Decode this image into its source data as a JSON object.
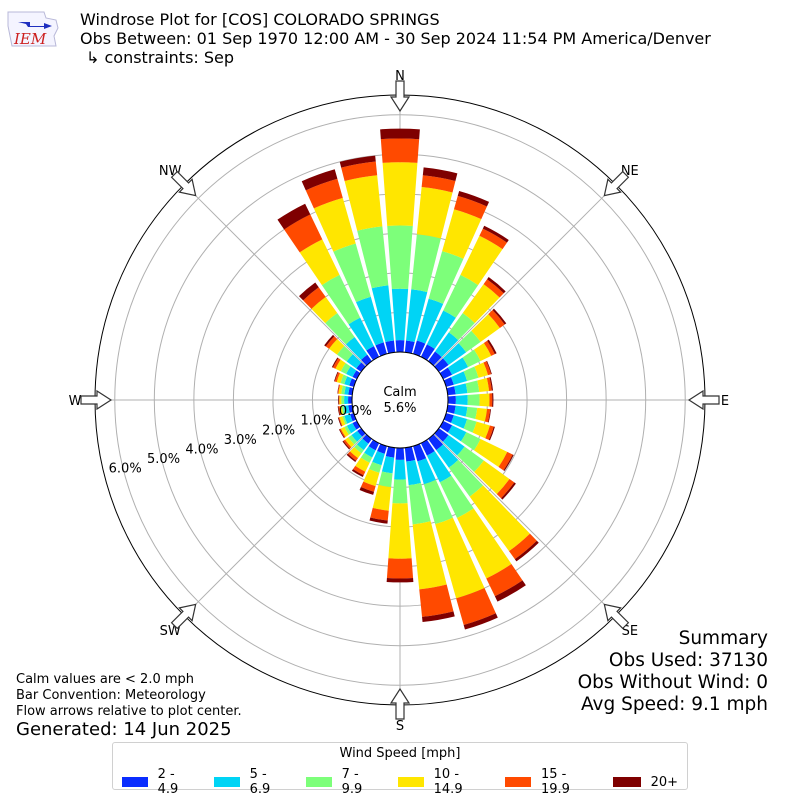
{
  "header": {
    "title": "Windrose Plot for [COS] COLORADO SPRINGS",
    "subtitle": "Obs Between: 01 Sep 1970 12:00 AM - 30 Sep 2024 11:54 PM America/Denver",
    "constraint": "↳ constraints: Sep",
    "logo_text": "IEM"
  },
  "notes": {
    "line1": "Calm values are < 2.0 mph",
    "line2": "Bar Convention: Meteorology",
    "line3": "Flow arrows relative to plot center.",
    "generated": "Generated: 14 Jun 2025"
  },
  "summary": {
    "title": "Summary",
    "obs_used": "Obs Used: 37130",
    "obs_without_wind": "Obs Without Wind: 0",
    "avg_speed": "Avg Speed: 9.1 mph"
  },
  "chart_data": {
    "type": "windrose",
    "title": "Windrose Plot for [COS] COLORADO SPRINGS",
    "calm": {
      "label": "Calm",
      "value_label": "5.6%",
      "value": 5.6
    },
    "radial_unit": "%",
    "radial_ticks": [
      0,
      1,
      2,
      3,
      4,
      5,
      6
    ],
    "radial_tick_labels": [
      "0.0%",
      "1.0%",
      "2.0%",
      "3.0%",
      "4.0%",
      "5.0%",
      "6.0%"
    ],
    "rmax": 6.5,
    "direction_labels": [
      {
        "label": "N",
        "angle": 0
      },
      {
        "label": "NE",
        "angle": 45
      },
      {
        "label": "E",
        "angle": 90
      },
      {
        "label": "SE",
        "angle": 135
      },
      {
        "label": "S",
        "angle": 180
      },
      {
        "label": "SW",
        "angle": 225
      },
      {
        "label": "W",
        "angle": 270
      },
      {
        "label": "NW",
        "angle": 315
      }
    ],
    "legend_title": "Wind Speed [mph]",
    "bins": [
      {
        "name": "2 - 4.9",
        "color": "#0a2dff"
      },
      {
        "name": "5 - 6.9",
        "color": "#00d4f5"
      },
      {
        "name": "7 - 9.9",
        "color": "#7dff7a"
      },
      {
        "name": "10 - 14.9",
        "color": "#ffe600"
      },
      {
        "name": "15 - 19.9",
        "color": "#ff4a00"
      },
      {
        "name": "20+",
        "color": "#7f0000"
      }
    ],
    "directions": [
      0,
      10,
      20,
      30,
      40,
      50,
      60,
      70,
      80,
      90,
      100,
      110,
      120,
      130,
      140,
      150,
      160,
      170,
      180,
      190,
      200,
      210,
      220,
      230,
      240,
      250,
      260,
      270,
      280,
      290,
      300,
      310,
      320,
      330,
      340,
      350
    ],
    "cumulative": [
      [
        0.3,
        1.6,
        3.2,
        4.8,
        5.4,
        5.65
      ],
      [
        0.3,
        1.6,
        3.0,
        4.2,
        4.5,
        4.7
      ],
      [
        0.35,
        1.45,
        2.7,
        3.8,
        4.15,
        4.28
      ],
      [
        0.35,
        1.3,
        2.3,
        3.4,
        3.6,
        3.68
      ],
      [
        0.3,
        0.9,
        1.5,
        2.4,
        2.55,
        2.62
      ],
      [
        0.3,
        0.85,
        1.3,
        1.9,
        2.05,
        2.1
      ],
      [
        0.25,
        0.7,
        1.05,
        1.35,
        1.45,
        1.5
      ],
      [
        0.2,
        0.55,
        0.85,
        1.1,
        1.18,
        1.2
      ],
      [
        0.2,
        0.5,
        0.8,
        1.05,
        1.12,
        1.15
      ],
      [
        0.2,
        0.5,
        0.8,
        1.05,
        1.12,
        1.15
      ],
      [
        0.2,
        0.5,
        0.75,
        1.0,
        1.08,
        1.1
      ],
      [
        0.2,
        0.55,
        0.8,
        1.15,
        1.25,
        1.28
      ],
      [
        0.25,
        0.65,
        1.05,
        1.8,
        1.95,
        1.98
      ],
      [
        0.3,
        0.8,
        1.4,
        2.2,
        2.35,
        2.4
      ],
      [
        0.35,
        0.9,
        1.8,
        3.5,
        3.75,
        3.82
      ],
      [
        0.35,
        1.1,
        2.1,
        3.8,
        4.3,
        4.45
      ],
      [
        0.4,
        1.0,
        2.05,
        4.0,
        4.7,
        4.82
      ],
      [
        0.35,
        0.95,
        1.95,
        3.6,
        4.3,
        4.43
      ],
      [
        0.3,
        0.8,
        1.4,
        2.8,
        3.3,
        3.4
      ],
      [
        0.25,
        0.65,
        1.0,
        1.6,
        1.85,
        1.93
      ],
      [
        0.2,
        0.5,
        0.7,
        1.05,
        1.2,
        1.28
      ],
      [
        0.2,
        0.4,
        0.55,
        0.8,
        0.9,
        0.95
      ],
      [
        0.15,
        0.35,
        0.45,
        0.6,
        0.68,
        0.72
      ],
      [
        0.12,
        0.3,
        0.4,
        0.5,
        0.55,
        0.58
      ],
      [
        0.12,
        0.28,
        0.35,
        0.45,
        0.48,
        0.5
      ],
      [
        0.1,
        0.25,
        0.3,
        0.38,
        0.4,
        0.42
      ],
      [
        0.1,
        0.22,
        0.27,
        0.32,
        0.35,
        0.37
      ],
      [
        0.1,
        0.2,
        0.27,
        0.32,
        0.33,
        0.35
      ],
      [
        0.1,
        0.2,
        0.28,
        0.35,
        0.37,
        0.38
      ],
      [
        0.12,
        0.25,
        0.35,
        0.45,
        0.5,
        0.52
      ],
      [
        0.12,
        0.3,
        0.45,
        0.6,
        0.67,
        0.7
      ],
      [
        0.15,
        0.45,
        0.75,
        1.0,
        1.1,
        1.15
      ],
      [
        0.2,
        0.75,
        1.5,
        2.0,
        2.3,
        2.45
      ],
      [
        0.3,
        1.1,
        2.3,
        3.3,
        4.0,
        4.3
      ],
      [
        0.3,
        1.5,
        2.9,
        4.1,
        4.6,
        4.85
      ],
      [
        0.3,
        1.7,
        3.2,
        4.5,
        4.85,
        5.0
      ]
    ]
  }
}
